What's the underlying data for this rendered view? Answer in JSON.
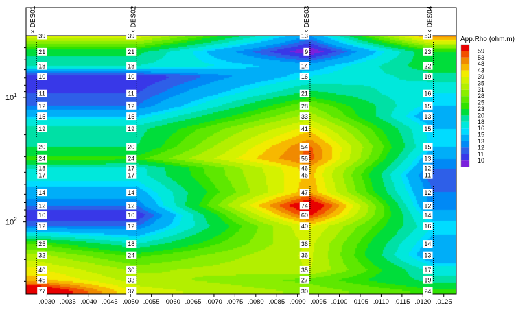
{
  "chart_data": {
    "type": "heatmap",
    "title": "",
    "xlabel": "",
    "ylabel": "",
    "x_ticks": [
      ".0030",
      ".0035",
      ".0040",
      ".0045",
      ".0050",
      ".0055",
      ".0060",
      ".0065",
      ".0070",
      ".0075",
      ".0080",
      ".0085",
      ".0090",
      ".0095",
      ".0100",
      ".0105",
      ".0110",
      ".0115",
      ".0120",
      ".0125"
    ],
    "xlim": [
      0.0025,
      0.0128
    ],
    "y_scale": "log",
    "y_inverted": true,
    "ylim": [
      3.2,
      380
    ],
    "y_tick_labels": [
      {
        "base": "10",
        "exp": "1",
        "value": 10
      },
      {
        "base": "10",
        "exp": "2",
        "value": 100
      }
    ],
    "soundings": [
      {
        "name": "DES01",
        "x": 0.00275,
        "label_side": "right"
      },
      {
        "name": "DES02",
        "x": 0.00515,
        "label_side": "left"
      },
      {
        "name": "DES03",
        "x": 0.0093,
        "label_side": "left"
      },
      {
        "name": "DES04",
        "x": 0.01225,
        "label_side": "left"
      }
    ],
    "depths": [
      3.2,
      4.3,
      5.6,
      6.8,
      9.3,
      11.7,
      14.2,
      17.8,
      25,
      31,
      37,
      42,
      58,
      74,
      88,
      108,
      150,
      185,
      242,
      292,
      358
    ],
    "values": [
      [
        39,
        39,
        13,
        53
      ],
      [
        21,
        21,
        9,
        23
      ],
      [
        18,
        18,
        14,
        22
      ],
      [
        10,
        10,
        16,
        19
      ],
      [
        11,
        11,
        21,
        16
      ],
      [
        12,
        12,
        28,
        15
      ],
      [
        15,
        15,
        33,
        13
      ],
      [
        19,
        19,
        41,
        15
      ],
      [
        20,
        20,
        54,
        15
      ],
      [
        24,
        24,
        56,
        13
      ],
      [
        18,
        17,
        46,
        12
      ],
      [
        17,
        17,
        45,
        11
      ],
      [
        14,
        14,
        47,
        12
      ],
      [
        12,
        12,
        74,
        12
      ],
      [
        10,
        10,
        60,
        14
      ],
      [
        12,
        12,
        40,
        16
      ],
      [
        25,
        18,
        36,
        14
      ],
      [
        32,
        24,
        36,
        13
      ],
      [
        40,
        30,
        35,
        17
      ],
      [
        45,
        33,
        27,
        19
      ],
      [
        77,
        37,
        30,
        24
      ]
    ],
    "colorbar": {
      "title": "App.Rho (ohm.m)",
      "levels": [
        59,
        53,
        48,
        43,
        39,
        35,
        31,
        28,
        25,
        23,
        20,
        18,
        16,
        15,
        13,
        12,
        11,
        10
      ],
      "colors": [
        "#e80000",
        "#f24f00",
        "#f08a00",
        "#f7b800",
        "#f2ec00",
        "#d4f200",
        "#b3ef00",
        "#8aee00",
        "#5ee800",
        "#30e200",
        "#00dd3a",
        "#00e0a5",
        "#00e8dc",
        "#00dcff",
        "#00aef8",
        "#0089f5",
        "#2e5fe8",
        "#3838e8",
        "#7a20dc"
      ]
    }
  }
}
